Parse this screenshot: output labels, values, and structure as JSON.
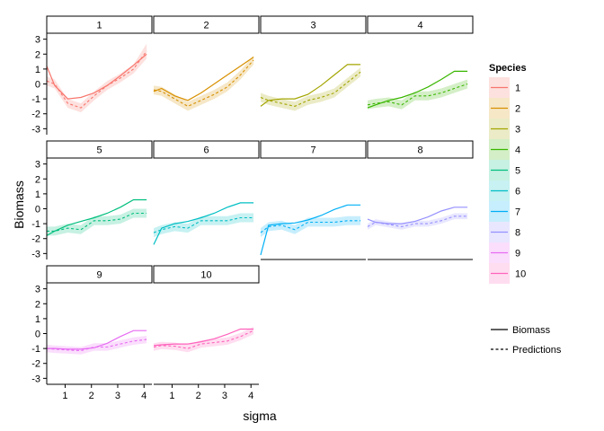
{
  "chart_data": {
    "type": "line",
    "xlabel": "sigma",
    "ylabel": "Biomass",
    "xlim": [
      0.3,
      4.3
    ],
    "ylim": [
      -3.4,
      3.4
    ],
    "xticks": [
      1,
      2,
      3,
      4
    ],
    "yticks": [
      -3,
      -2,
      -1,
      0,
      1,
      2,
      3
    ],
    "x": [
      0.3,
      0.6,
      1.1,
      1.6,
      2.1,
      2.6,
      3.1,
      3.6,
      4.1
    ],
    "legend": {
      "title": "Species",
      "linetype_labels": [
        "Biomass",
        "Predictions"
      ]
    },
    "panels": [
      {
        "label": "1",
        "color": "#F8766D",
        "biomass": [
          1.2,
          -0.1,
          -1.0,
          -0.9,
          -0.6,
          -0.1,
          0.55,
          1.25,
          2.0
        ],
        "predictions": [
          0.2,
          0.0,
          -1.3,
          -1.6,
          -0.8,
          -0.1,
          0.4,
          1.0,
          2.2
        ],
        "band_width": [
          0.3,
          0.3,
          0.3,
          0.3,
          0.3,
          0.3,
          0.3,
          0.3,
          0.5
        ]
      },
      {
        "label": "2",
        "color": "#D89000",
        "biomass": [
          -0.5,
          -0.3,
          -0.8,
          -1.1,
          -0.6,
          0.0,
          0.6,
          1.2,
          1.8
        ],
        "predictions": [
          -0.4,
          -0.5,
          -1.0,
          -1.5,
          -1.1,
          -0.7,
          -0.2,
          0.6,
          1.6
        ],
        "band_width": [
          0.3,
          0.3,
          0.3,
          0.3,
          0.3,
          0.3,
          0.3,
          0.3,
          0.3
        ]
      },
      {
        "label": "3",
        "color": "#A3A500",
        "biomass": [
          -1.5,
          -1.1,
          -1.0,
          -1.0,
          -0.7,
          -0.1,
          0.6,
          1.3,
          1.3
        ],
        "predictions": [
          -0.9,
          -1.1,
          -1.3,
          -1.5,
          -1.1,
          -0.9,
          -0.6,
          0.1,
          0.8
        ],
        "band_width": [
          0.3,
          0.3,
          0.3,
          0.3,
          0.3,
          0.3,
          0.3,
          0.3,
          0.3
        ]
      },
      {
        "label": "4",
        "color": "#39B600",
        "biomass": [
          -1.6,
          -1.4,
          -1.1,
          -0.9,
          -0.6,
          -0.2,
          0.3,
          0.85,
          0.85
        ],
        "predictions": [
          -1.4,
          -1.3,
          -1.2,
          -1.4,
          -0.8,
          -0.8,
          -0.6,
          -0.3,
          0.0
        ],
        "band_width": [
          0.3,
          0.3,
          0.3,
          0.3,
          0.3,
          0.3,
          0.3,
          0.3,
          0.3
        ]
      },
      {
        "label": "5",
        "color": "#00BF7D",
        "biomass": [
          -1.8,
          -1.5,
          -1.1,
          -0.85,
          -0.6,
          -0.3,
          0.1,
          0.6,
          0.6
        ],
        "predictions": [
          -1.5,
          -1.5,
          -1.3,
          -1.4,
          -0.8,
          -0.8,
          -0.7,
          -0.3,
          -0.3
        ],
        "band_width": [
          0.3,
          0.3,
          0.3,
          0.3,
          0.3,
          0.3,
          0.3,
          0.3,
          0.3
        ]
      },
      {
        "label": "6",
        "color": "#00BFC4",
        "biomass": [
          -2.4,
          -1.3,
          -1.0,
          -0.85,
          -0.6,
          -0.3,
          0.1,
          0.4,
          0.4
        ],
        "predictions": [
          -1.6,
          -1.4,
          -1.2,
          -1.3,
          -0.8,
          -0.8,
          -0.8,
          -0.6,
          -0.6
        ],
        "band_width": [
          0.3,
          0.3,
          0.3,
          0.3,
          0.3,
          0.3,
          0.3,
          0.3,
          0.3
        ]
      },
      {
        "label": "7",
        "color": "#00B0F6",
        "biomass": [
          -3.1,
          -1.1,
          -1.0,
          -0.95,
          -0.75,
          -0.45,
          -0.05,
          0.25,
          0.25
        ],
        "predictions": [
          -1.6,
          -1.2,
          -1.1,
          -1.4,
          -0.9,
          -0.9,
          -0.9,
          -0.8,
          -0.8
        ],
        "band_width": [
          0.3,
          0.3,
          0.3,
          0.3,
          0.3,
          0.3,
          0.3,
          0.3,
          0.3
        ]
      },
      {
        "label": "8",
        "color": "#9590FF",
        "biomass": [
          -0.7,
          -0.9,
          -1.0,
          -1.0,
          -0.85,
          -0.55,
          -0.15,
          0.1,
          0.1
        ],
        "predictions": [
          -1.2,
          -0.9,
          -1.05,
          -1.2,
          -1.0,
          -1.0,
          -0.8,
          -0.5,
          -0.5
        ],
        "band_width": [
          0.2,
          0.2,
          0.2,
          0.2,
          0.2,
          0.2,
          0.2,
          0.2,
          0.2
        ]
      },
      {
        "label": "9",
        "color": "#E76BF3",
        "biomass": [
          -1.0,
          -1.0,
          -1.05,
          -1.05,
          -0.95,
          -0.65,
          -0.2,
          0.2,
          0.2
        ],
        "predictions": [
          -1.0,
          -1.05,
          -1.1,
          -1.15,
          -0.9,
          -0.9,
          -0.7,
          -0.5,
          -0.4
        ],
        "band_width": [
          0.25,
          0.25,
          0.25,
          0.25,
          0.25,
          0.25,
          0.25,
          0.25,
          0.25
        ]
      },
      {
        "label": "10",
        "color": "#FF62BC",
        "biomass": [
          -0.8,
          -0.75,
          -0.7,
          -0.7,
          -0.55,
          -0.35,
          -0.05,
          0.3,
          0.3
        ],
        "predictions": [
          -0.9,
          -0.8,
          -0.85,
          -1.0,
          -0.7,
          -0.6,
          -0.5,
          -0.2,
          0.2
        ],
        "band_width": [
          0.25,
          0.25,
          0.25,
          0.25,
          0.25,
          0.25,
          0.25,
          0.25,
          0.25
        ]
      }
    ]
  }
}
